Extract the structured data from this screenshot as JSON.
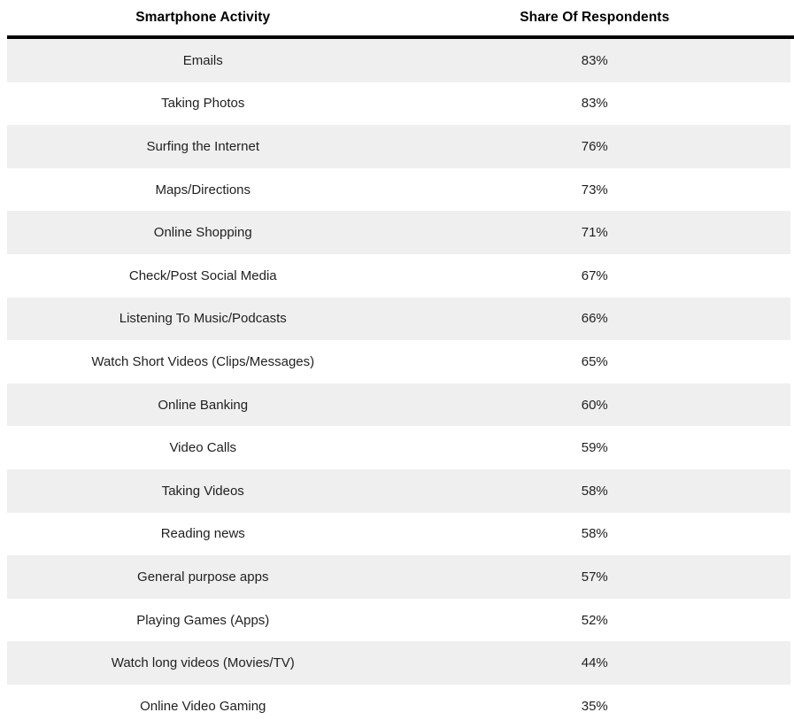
{
  "table": {
    "columns": [
      "Smartphone Activity",
      "Share Of Respondents"
    ],
    "rows": [
      {
        "activity": "Emails",
        "share": "83%"
      },
      {
        "activity": "Taking Photos",
        "share": "83%"
      },
      {
        "activity": "Surfing the Internet",
        "share": "76%"
      },
      {
        "activity": "Maps/Directions",
        "share": "73%"
      },
      {
        "activity": "Online Shopping",
        "share": "71%"
      },
      {
        "activity": "Check/Post Social Media",
        "share": "67%"
      },
      {
        "activity": "Listening To Music/Podcasts",
        "share": "66%"
      },
      {
        "activity": "Watch Short Videos (Clips/Messages)",
        "share": "65%"
      },
      {
        "activity": "Online Banking",
        "share": "60%"
      },
      {
        "activity": "Video Calls",
        "share": "59%"
      },
      {
        "activity": "Taking Videos",
        "share": "58%"
      },
      {
        "activity": "Reading news",
        "share": "58%"
      },
      {
        "activity": "General purpose apps",
        "share": "57%"
      },
      {
        "activity": "Playing Games (Apps)",
        "share": "52%"
      },
      {
        "activity": "Watch long videos (Movies/TV)",
        "share": "44%"
      },
      {
        "activity": "Online Video Gaming",
        "share": "35%"
      }
    ]
  },
  "chart_data": {
    "type": "table",
    "title": "",
    "columns": [
      "Smartphone Activity",
      "Share Of Respondents"
    ],
    "categories": [
      "Emails",
      "Taking Photos",
      "Surfing the Internet",
      "Maps/Directions",
      "Online Shopping",
      "Check/Post Social Media",
      "Listening To Music/Podcasts",
      "Watch Short Videos (Clips/Messages)",
      "Online Banking",
      "Video Calls",
      "Taking Videos",
      "Reading news",
      "General purpose apps",
      "Playing Games (Apps)",
      "Watch long videos (Movies/TV)",
      "Online Video Gaming"
    ],
    "values": [
      83,
      83,
      76,
      73,
      71,
      67,
      66,
      65,
      60,
      59,
      58,
      58,
      57,
      52,
      44,
      35
    ],
    "value_unit": "%",
    "layout": {
      "row_striping": true,
      "first_row_striped": true,
      "text_align": "center"
    }
  },
  "colors": {
    "row_alt_background": "#efefef",
    "row_background": "#ffffff",
    "header_rule": "#000000",
    "header_text": "#000000",
    "body_text": "#1f1f1f"
  }
}
